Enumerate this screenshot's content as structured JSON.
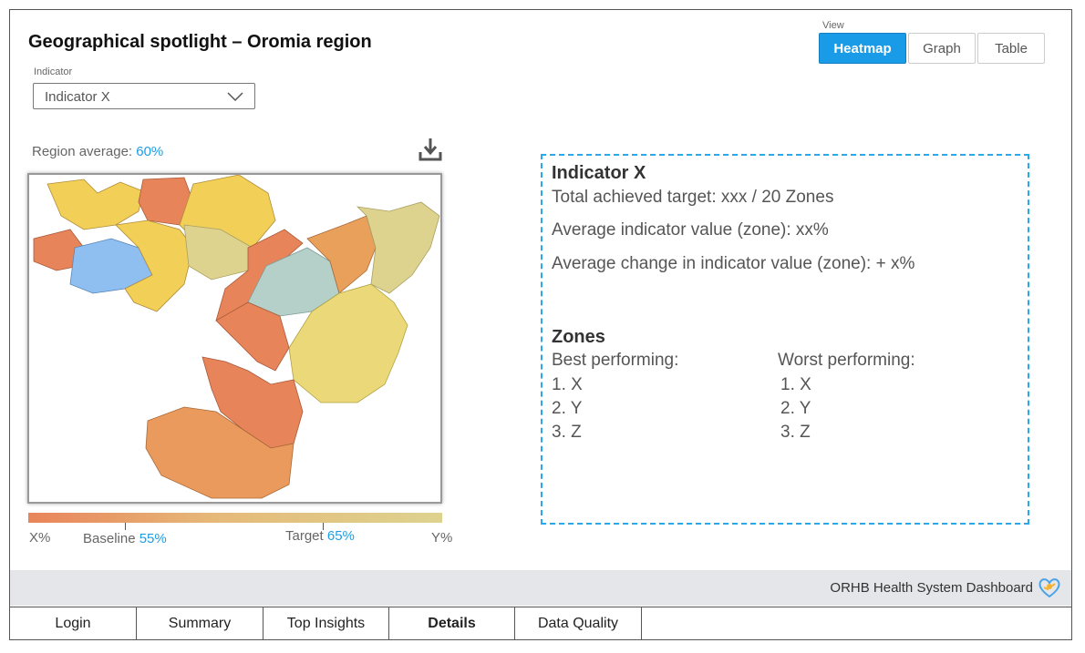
{
  "title": "Geographical spotlight – Oromia region",
  "indicator": {
    "label": "Indicator",
    "value": "Indicator X"
  },
  "view": {
    "label": "View",
    "buttons": [
      "Heatmap",
      "Graph",
      "Table"
    ],
    "active": "Heatmap"
  },
  "region_average": {
    "label": "Region average:",
    "value": "60%"
  },
  "legend": {
    "min": "X%",
    "baseline_label": "Baseline",
    "baseline_value": "55%",
    "target_label": "Target",
    "target_value": "65%",
    "max": "Y%"
  },
  "info": {
    "indicator_title": "Indicator X",
    "line1": "Total achieved target: xxx / 20 Zones",
    "line2": "Average indicator value (zone): xx%",
    "line3": "Average change in indicator value (zone): + x%",
    "zones_title": "Zones",
    "best_label": "Best performing:",
    "best": [
      "1. X",
      "2. Y",
      "3. Z"
    ],
    "worst_label": "Worst performing:",
    "worst": [
      "1. X",
      "2. Y",
      "3. Z"
    ]
  },
  "footer": {
    "brand": "ORHB Health System Dashboard"
  },
  "tabs": [
    "Login",
    "Summary",
    "Top Insights",
    "Details",
    "Data Quality"
  ],
  "active_tab": "Details",
  "colors": {
    "accent": "#1a9be8",
    "low": "#e8845a",
    "mid": "#f2cf57",
    "high": "#ddd38f",
    "blue_zone": "#8fbff0",
    "teal_zone": "#b5cfc9"
  }
}
